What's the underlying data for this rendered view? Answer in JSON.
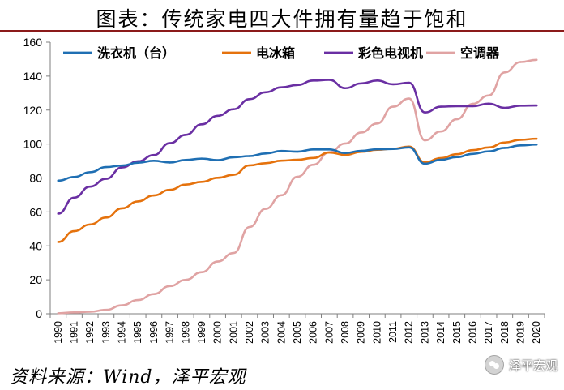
{
  "title": "图表：传统家电四大件拥有量趋于饱和",
  "source": "资料来源：Wind，泽平宏观",
  "watermark": "泽平宏观",
  "chart_data": {
    "type": "line",
    "title": "图表：传统家电四大件拥有量趋于饱和",
    "xlabel": "",
    "ylabel": "",
    "ylim": [
      0,
      160
    ],
    "yticks": [
      0,
      20,
      40,
      60,
      80,
      100,
      120,
      140,
      160
    ],
    "grid": false,
    "legend_position": "top",
    "x": [
      "1990",
      "1991",
      "1992",
      "1993",
      "1994",
      "1995",
      "1996",
      "1997",
      "1998",
      "1999",
      "2000",
      "2001",
      "2002",
      "2003",
      "2004",
      "2005",
      "2006",
      "2007",
      "2008",
      "2009",
      "2010",
      "2011",
      "2012",
      "2013",
      "2014",
      "2015",
      "2016",
      "2017",
      "2018",
      "2019",
      "2020"
    ],
    "series": [
      {
        "name": "洗衣机（台）",
        "color": "#1f6fb3",
        "values": [
          78.4,
          80.6,
          83.4,
          86.4,
          87.3,
          89.0,
          90.1,
          89.1,
          90.6,
          91.4,
          90.5,
          92.2,
          92.9,
          94.4,
          95.9,
          95.5,
          96.8,
          96.8,
          94.7,
          96.0,
          96.9,
          97.1,
          98.0,
          88.4,
          90.7,
          92.3,
          94.2,
          95.7,
          97.7,
          99.2,
          99.7
        ]
      },
      {
        "name": "电冰箱",
        "color": "#e5720d",
        "values": [
          42.3,
          48.7,
          52.6,
          56.7,
          62.1,
          66.2,
          69.7,
          73.0,
          76.1,
          77.7,
          80.1,
          81.9,
          87.4,
          88.7,
          90.2,
          90.7,
          91.8,
          95.0,
          93.6,
          95.4,
          96.6,
          97.2,
          98.5,
          89.2,
          91.7,
          94.0,
          96.4,
          98.0,
          100.9,
          102.5,
          103.1
        ]
      },
      {
        "name": "彩色电视机",
        "color": "#6a2fa3",
        "values": [
          59.0,
          68.4,
          74.9,
          79.5,
          86.2,
          89.8,
          93.5,
          100.5,
          105.4,
          111.6,
          116.6,
          120.5,
          126.4,
          130.5,
          133.4,
          134.8,
          137.4,
          137.8,
          132.9,
          135.7,
          137.4,
          135.2,
          136.1,
          118.6,
          122.0,
          122.3,
          122.3,
          123.8,
          121.3,
          122.6,
          122.7
        ]
      },
      {
        "name": "空调器",
        "color": "#e0a3a3",
        "values": [
          0.3,
          0.8,
          1.2,
          2.3,
          5.0,
          8.1,
          11.6,
          16.3,
          20.0,
          24.5,
          30.8,
          35.8,
          51.1,
          61.8,
          69.8,
          80.7,
          87.8,
          95.1,
          100.3,
          106.8,
          112.1,
          122.0,
          126.8,
          102.2,
          107.4,
          114.6,
          123.7,
          128.6,
          142.2,
          148.3,
          149.6
        ]
      }
    ]
  }
}
